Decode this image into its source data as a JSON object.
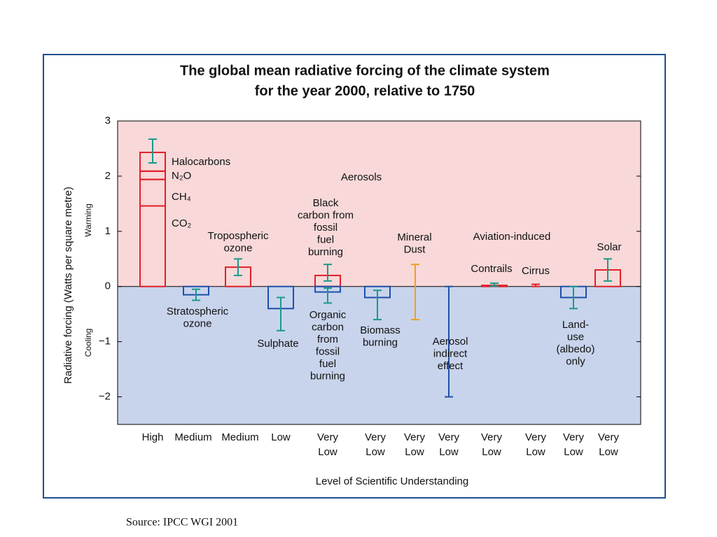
{
  "chart_data": {
    "type": "bar",
    "title": [
      "The global mean radiative forcing of the climate system",
      "for the year 2000, relative to 1750"
    ],
    "ylabel": "Radiative forcing  (Watts per square metre)",
    "warming": "Warming",
    "cooling": "Cooling",
    "xlabel": "Level  of Scientific Understanding",
    "ylim": [
      -2.5,
      3
    ],
    "yticks": [
      {
        "value": -2,
        "label": "−2"
      },
      {
        "value": -1,
        "label": "−1"
      },
      0,
      1,
      2,
      3
    ],
    "warm_color": "#f8d8d8",
    "cool_color": "#c8d4ec",
    "error_color": "#1a9a8a",
    "groups": [
      "Aerosols",
      "Aviation-induced"
    ],
    "bars": [
      {
        "segments": [
          {
            "name": "CO₂",
            "value": 1.46
          },
          {
            "name": "CH₄",
            "value": 0.48
          },
          {
            "name": "N₂O",
            "value": 0.15
          },
          {
            "name": "Halocarbons",
            "value": 0.34
          }
        ],
        "range": [
          2.24,
          2.67
        ],
        "color": "#e0202a",
        "level": [
          "High"
        ]
      },
      {
        "label": [
          "Stratospheric",
          "ozone"
        ],
        "value": -0.15,
        "range": [
          -0.25,
          -0.05
        ],
        "color": "#1f4fa8",
        "level": [
          "Medium"
        ]
      },
      {
        "label": [
          "Tropospheric",
          "ozone"
        ],
        "value": 0.35,
        "range": [
          0.2,
          0.5
        ],
        "color": "#e0202a",
        "level": [
          "Medium"
        ]
      },
      {
        "label": [
          "Sulphate"
        ],
        "value": -0.4,
        "range": [
          -0.8,
          -0.2
        ],
        "color": "#1f4fa8",
        "level": [
          "Low"
        ]
      },
      {
        "label": [
          "Black",
          "carbon from",
          "fossil",
          "fuel",
          "burning"
        ],
        "value": 0.2,
        "range": [
          0.1,
          0.4
        ],
        "color": "#e0202a",
        "level": [
          "Very",
          "Low"
        ]
      },
      {
        "label": [
          "Organic",
          "carbon",
          "from",
          "fossil",
          "fuel",
          "burning"
        ],
        "value": -0.1,
        "range": [
          -0.3,
          -0.03
        ],
        "color": "#1f4fa8"
      },
      {
        "label": [
          "Biomass",
          "burning"
        ],
        "value": -0.2,
        "range": [
          -0.6,
          -0.07
        ],
        "color": "#1f4fa8",
        "level": [
          "Very",
          "Low"
        ]
      },
      {
        "label": [
          "Mineral",
          "Dust"
        ],
        "range": [
          -0.6,
          0.4
        ],
        "color": "#f0a020",
        "level": [
          "Very",
          "Low"
        ]
      },
      {
        "label": [
          "Aerosol",
          "indirect",
          "effect"
        ],
        "range": [
          -2,
          0
        ],
        "color": "#1f4fa8",
        "level": [
          "Very",
          "Low"
        ]
      },
      {
        "label": [
          "Contrails"
        ],
        "value": 0.02,
        "range": [
          0.005,
          0.06
        ],
        "color": "#e0202a",
        "level": [
          "Very",
          "Low"
        ]
      },
      {
        "label": [
          "Cirrus"
        ],
        "range": [
          0,
          0.04
        ],
        "color": "#e0202a",
        "level": [
          "Very",
          "Low"
        ]
      },
      {
        "label": [
          "Land-",
          "use",
          "(albedo)",
          "only"
        ],
        "value": -0.2,
        "range": [
          -0.4,
          0
        ],
        "color": "#1f4fa8",
        "level": [
          "Very",
          "Low"
        ]
      },
      {
        "label": [
          "Solar"
        ],
        "value": 0.3,
        "range": [
          0.1,
          0.5
        ],
        "color": "#e0202a",
        "level": [
          "Very",
          "Low"
        ]
      }
    ],
    "source": "Source: IPCC WGI 2001"
  }
}
